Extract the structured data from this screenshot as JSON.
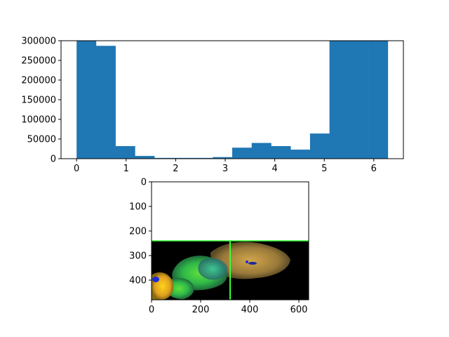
{
  "chart_data": [
    {
      "type": "bar",
      "title": "",
      "xlabel": "",
      "ylabel": "",
      "xlim": [
        -0.3142,
        6.5973
      ],
      "ylim": [
        0,
        300000
      ],
      "bin_width": 0.3927,
      "bin_starts": [
        0,
        0.3927,
        0.7854,
        1.1781,
        1.5708,
        1.9635,
        2.3562,
        2.7489,
        3.1416,
        3.5343,
        3.927,
        4.3197,
        4.7124,
        5.1051,
        5.4978,
        5.8905
      ],
      "values": [
        300000,
        287000,
        32000,
        7000,
        2000,
        2000,
        2000,
        4000,
        28000,
        40000,
        32000,
        23000,
        64000,
        300000,
        300000,
        300000
      ],
      "color": "#1f77b4",
      "x_ticks": [
        {
          "value": 0,
          "label": "0"
        },
        {
          "value": 1,
          "label": "1"
        },
        {
          "value": 2,
          "label": "2"
        },
        {
          "value": 3,
          "label": "3"
        },
        {
          "value": 4,
          "label": "4"
        },
        {
          "value": 5,
          "label": "5"
        },
        {
          "value": 6,
          "label": "6"
        }
      ],
      "y_ticks": [
        {
          "value": 0,
          "label": "0"
        },
        {
          "value": 50000,
          "label": "50000"
        },
        {
          "value": 100000,
          "label": "100000"
        },
        {
          "value": 150000,
          "label": "150000"
        },
        {
          "value": 200000,
          "label": "200000"
        },
        {
          "value": 250000,
          "label": "250000"
        },
        {
          "value": 300000,
          "label": "300000"
        }
      ]
    },
    {
      "type": "image",
      "title": "",
      "xlim": [
        0,
        640
      ],
      "ylim": [
        480,
        0
      ],
      "x_ticks": [
        {
          "value": 0,
          "label": "0"
        },
        {
          "value": 200,
          "label": "200"
        },
        {
          "value": 400,
          "label": "400"
        },
        {
          "value": 600,
          "label": "600"
        }
      ],
      "y_ticks": [
        {
          "value": 0,
          "label": "0"
        },
        {
          "value": 100,
          "label": "100"
        },
        {
          "value": 200,
          "label": "200"
        },
        {
          "value": 300,
          "label": "300"
        },
        {
          "value": 400,
          "label": "400"
        }
      ],
      "guide_line_horizontal_y": 240,
      "guide_line_vertical_x": 320,
      "guide_line_color": "#33ff33",
      "background_color": "#000000",
      "top_region_color": "#ffffff"
    }
  ]
}
